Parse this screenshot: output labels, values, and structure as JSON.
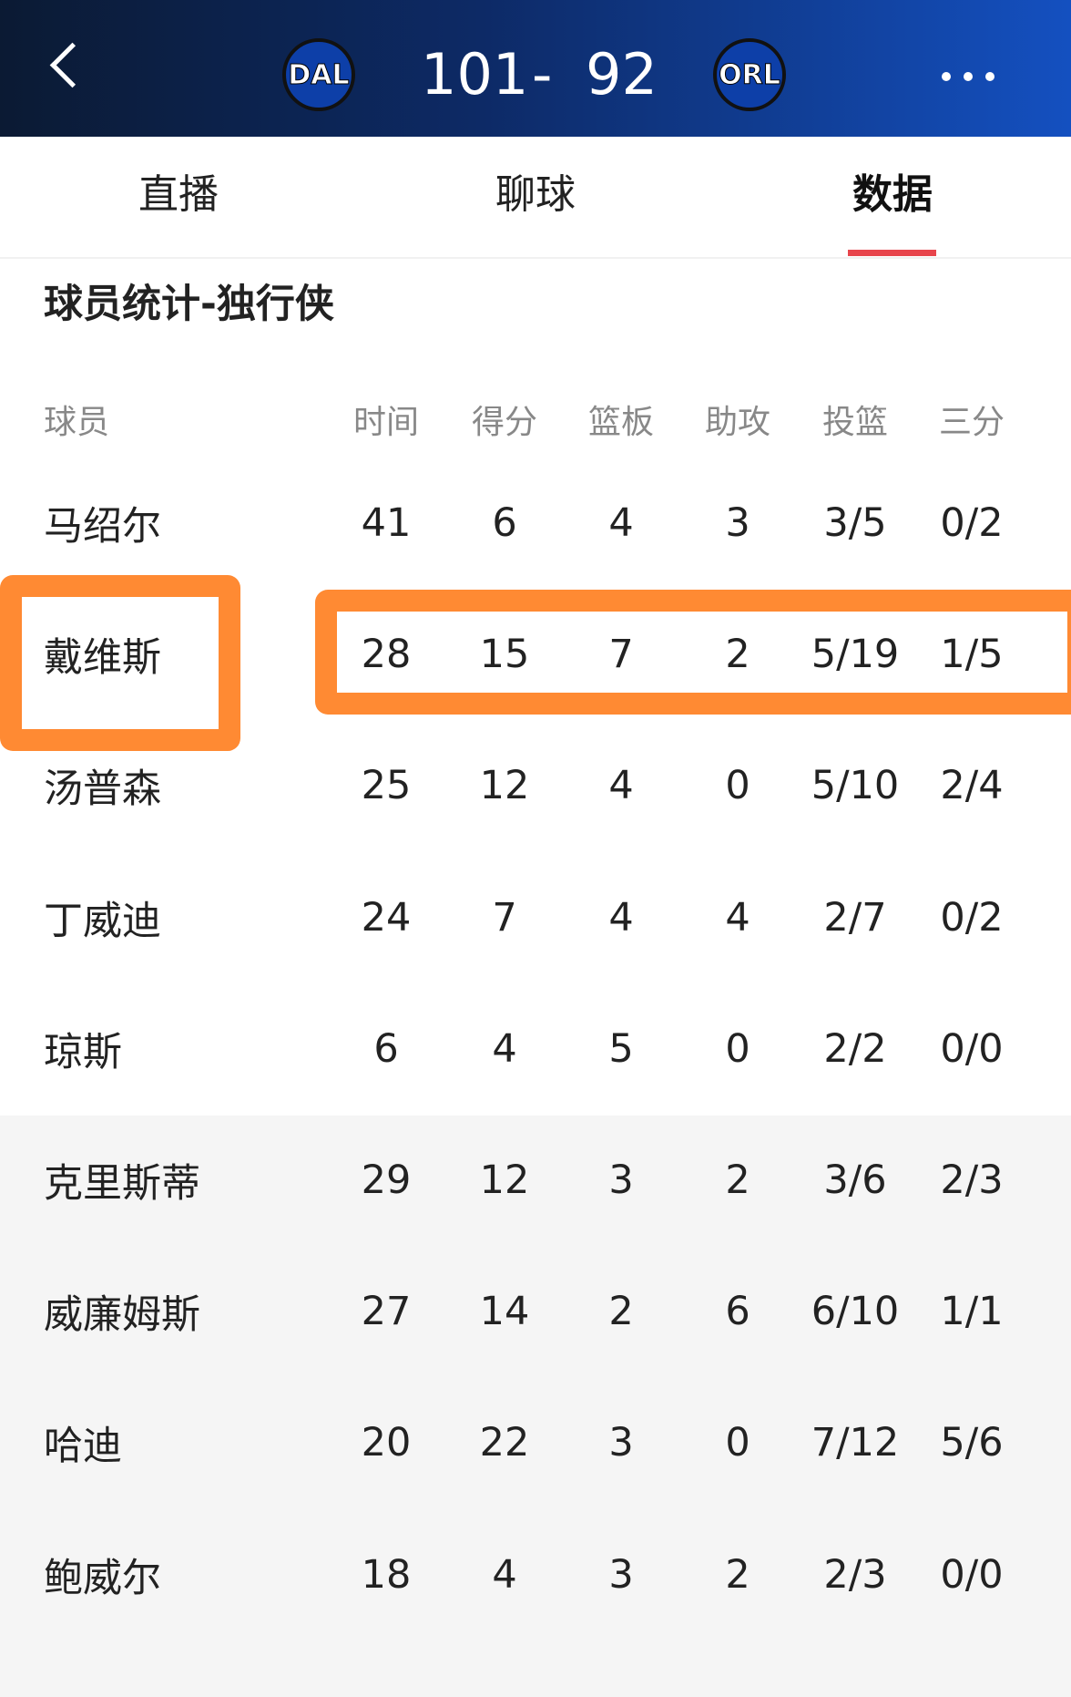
{
  "header": {
    "home_team": "DAL",
    "home_score": "101",
    "separator": "-",
    "away_score": "92",
    "away_team": "ORL"
  },
  "tabs": [
    "直播",
    "聊球",
    "数据"
  ],
  "section_title": "球员统计-独行侠",
  "table": {
    "columns": [
      "球员",
      "时间",
      "得分",
      "篮板",
      "助攻",
      "投篮",
      "三分"
    ],
    "rows": [
      [
        "马绍尔",
        "41",
        "6",
        "4",
        "3",
        "3/5",
        "0/2"
      ],
      [
        "戴维斯",
        "28",
        "15",
        "7",
        "2",
        "5/19",
        "1/5"
      ],
      [
        "汤普森",
        "25",
        "12",
        "4",
        "0",
        "5/10",
        "2/4"
      ],
      [
        "丁威迪",
        "24",
        "7",
        "4",
        "4",
        "2/7",
        "0/2"
      ],
      [
        "琼斯",
        "6",
        "4",
        "5",
        "0",
        "2/2",
        "0/0"
      ],
      [
        "克里斯蒂",
        "29",
        "12",
        "3",
        "2",
        "3/6",
        "2/3"
      ],
      [
        "威廉姆斯",
        "27",
        "14",
        "2",
        "6",
        "6/10",
        "1/1"
      ],
      [
        "哈迪",
        "20",
        "22",
        "3",
        "0",
        "7/12",
        "5/6"
      ],
      [
        "鲍威尔",
        "18",
        "4",
        "3",
        "2",
        "2/3",
        "0/0"
      ]
    ]
  }
}
